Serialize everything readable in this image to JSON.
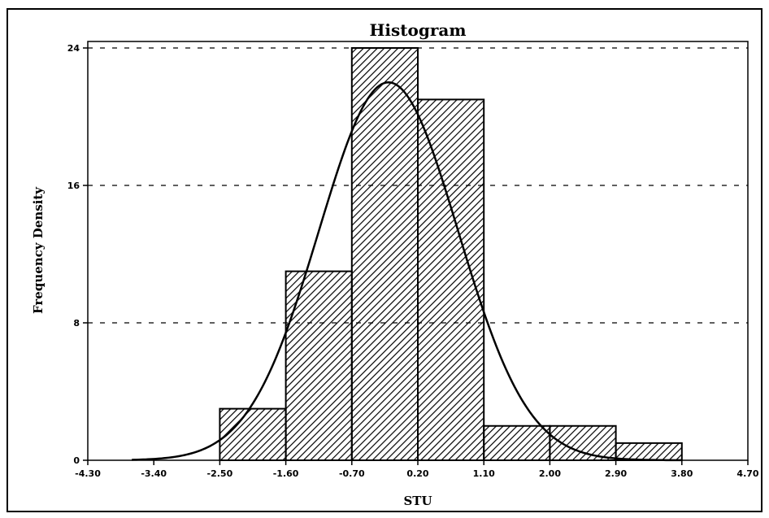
{
  "chart_data": {
    "type": "bar",
    "title": "Histogram",
    "xlabel": "STU",
    "ylabel": "Frequency Density",
    "xlim": [
      -4.3,
      4.7
    ],
    "ylim": [
      0,
      24
    ],
    "x_ticks": [
      "-4.30",
      "-3.40",
      "-2.50",
      "-1.60",
      "-0.70",
      "0.20",
      "1.10",
      "2.00",
      "2.90",
      "3.80",
      "4.70"
    ],
    "y_ticks": [
      "0",
      "8",
      "16",
      "24"
    ],
    "bin_edges": [
      -2.5,
      -1.6,
      -0.7,
      0.2,
      1.1,
      2.0,
      2.9,
      3.8
    ],
    "values": [
      3,
      11,
      24,
      21,
      2,
      2,
      1
    ],
    "grid": "horizontal dashed",
    "fill": "diagonal hatch",
    "curve": {
      "type": "normal",
      "mean": -0.2,
      "sd": 0.95,
      "peak": 22
    }
  }
}
